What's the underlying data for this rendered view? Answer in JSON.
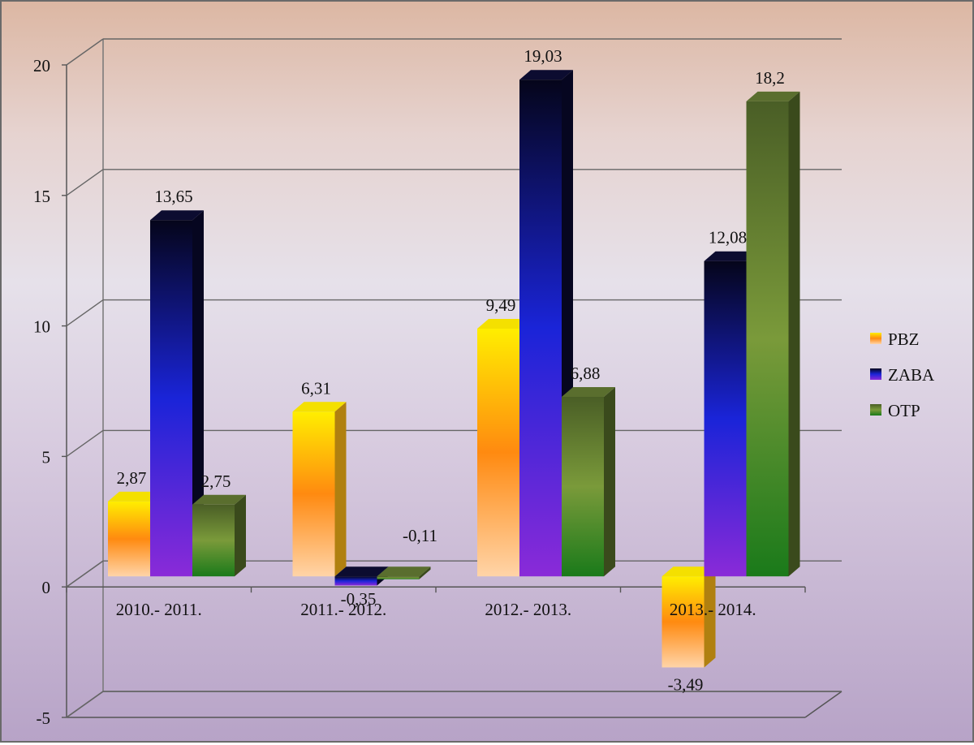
{
  "chart_data": {
    "type": "bar",
    "categories": [
      "2010.- 2011.",
      "2011.- 2012.",
      "2012.- 2013.",
      "2013.- 2014."
    ],
    "series": [
      {
        "name": "PBZ",
        "values": [
          2.87,
          6.31,
          9.49,
          -3.49
        ],
        "labels": [
          "2,87",
          "6,31",
          "9,49",
          "-3,49"
        ]
      },
      {
        "name": "ZABA",
        "values": [
          13.65,
          -0.35,
          19.03,
          12.08
        ],
        "labels": [
          "13,65",
          "-0,35",
          "19,03",
          "12,08"
        ]
      },
      {
        "name": "OTP",
        "values": [
          2.75,
          -0.11,
          6.88,
          18.2
        ],
        "labels": [
          "2,75",
          "-0,11",
          "6,88",
          "18,2"
        ]
      }
    ],
    "ylim": [
      -5,
      20
    ],
    "yticks": [
      "-5",
      "0",
      "5",
      "10",
      "15",
      "20"
    ],
    "grid": true,
    "legend": "right",
    "colors": {
      "PBZ": [
        "#ffee00",
        "#ff8a10",
        "#ffd4a8"
      ],
      "ZABA": [
        "#05051a",
        "#1a24d8",
        "#8a2ad8"
      ],
      "OTP": [
        "#4a5e26",
        "#7a9a3a",
        "#1a7a1a"
      ]
    }
  }
}
